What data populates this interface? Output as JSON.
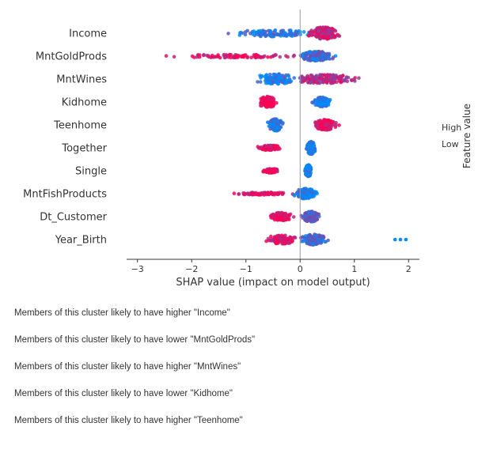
{
  "chart_data": {
    "type": "scatter",
    "subtype": "shap-beeswarm",
    "title": "",
    "xlabel": "SHAP value (impact on model output)",
    "ylabel": "",
    "xlim": [
      -3.2,
      2.2
    ],
    "xticks": [
      -3,
      -2,
      -1,
      0,
      1,
      2
    ],
    "xtick_labels": [
      "−3",
      "−2",
      "−1",
      "0",
      "1",
      "2"
    ],
    "zero_line": true,
    "colorbar": {
      "title": "Feature value",
      "high_label": "High",
      "low_label": "Low",
      "low_color": "#008bfb",
      "high_color": "#ff0052",
      "placement": "right"
    },
    "features": [
      {
        "name": "Income",
        "clusters": [
          {
            "min": -1.4,
            "max": 0.2,
            "center": -0.5,
            "width": 0.6,
            "weight": 0.45,
            "height": 0.4,
            "color": 0.15
          },
          {
            "min": 0.1,
            "max": 0.95,
            "center": 0.45,
            "width": 0.25,
            "weight": 0.55,
            "height": 0.7,
            "color": 0.8
          }
        ]
      },
      {
        "name": "MntGoldProds",
        "clusters": [
          {
            "min": -2.8,
            "max": -0.1,
            "center": -1.2,
            "width": 1.1,
            "weight": 0.35,
            "height": 0.2,
            "color": 0.9
          },
          {
            "min": -0.1,
            "max": 0.85,
            "center": 0.3,
            "width": 0.3,
            "weight": 0.65,
            "height": 0.55,
            "color": 0.25
          }
        ]
      },
      {
        "name": "MntWines",
        "clusters": [
          {
            "min": -1.0,
            "max": 0.0,
            "center": -0.45,
            "width": 0.35,
            "weight": 0.4,
            "height": 0.6,
            "color": 0.12
          },
          {
            "min": 0.0,
            "max": 1.75,
            "center": 0.45,
            "width": 0.55,
            "weight": 0.6,
            "height": 0.5,
            "color": 0.7
          }
        ]
      },
      {
        "name": "Kidhome",
        "clusters": [
          {
            "min": -0.85,
            "max": -0.25,
            "center": -0.6,
            "width": 0.15,
            "weight": 0.45,
            "height": 0.65,
            "color": 0.95
          },
          {
            "min": 0.1,
            "max": 0.7,
            "center": 0.4,
            "width": 0.15,
            "weight": 0.55,
            "height": 0.55,
            "color": 0.08
          }
        ]
      },
      {
        "name": "Teenhome",
        "clusters": [
          {
            "min": -0.65,
            "max": -0.2,
            "center": -0.45,
            "width": 0.12,
            "weight": 0.45,
            "height": 0.7,
            "color": 0.08
          },
          {
            "min": 0.05,
            "max": 1.1,
            "center": 0.45,
            "width": 0.2,
            "weight": 0.55,
            "height": 0.6,
            "color": 0.92
          }
        ]
      },
      {
        "name": "Together",
        "clusters": [
          {
            "min": -1.0,
            "max": -0.15,
            "center": -0.55,
            "width": 0.2,
            "weight": 0.35,
            "height": 0.3,
            "color": 0.95
          },
          {
            "min": 0.05,
            "max": 0.35,
            "center": 0.2,
            "width": 0.07,
            "weight": 0.65,
            "height": 0.75,
            "color": 0.05
          }
        ]
      },
      {
        "name": "Single",
        "clusters": [
          {
            "min": -0.9,
            "max": -0.25,
            "center": -0.55,
            "width": 0.15,
            "weight": 0.3,
            "height": 0.25,
            "color": 0.95
          },
          {
            "min": 0.05,
            "max": 0.3,
            "center": 0.15,
            "width": 0.05,
            "weight": 0.7,
            "height": 0.7,
            "color": 0.05
          }
        ]
      },
      {
        "name": "MntFishProducts",
        "clusters": [
          {
            "min": -1.4,
            "max": -0.1,
            "center": -0.6,
            "width": 0.5,
            "weight": 0.3,
            "height": 0.15,
            "color": 0.9
          },
          {
            "min": -0.3,
            "max": 0.55,
            "center": 0.1,
            "width": 0.18,
            "weight": 0.7,
            "height": 0.6,
            "color": 0.15
          }
        ]
      },
      {
        "name": "Dt_Customer",
        "clusters": [
          {
            "min": -0.75,
            "max": 0.05,
            "center": -0.35,
            "width": 0.22,
            "weight": 0.45,
            "height": 0.45,
            "color": 0.88
          },
          {
            "min": 0.0,
            "max": 0.7,
            "center": 0.2,
            "width": 0.15,
            "weight": 0.55,
            "height": 0.6,
            "color": 0.35
          }
        ]
      },
      {
        "name": "Year_Birth",
        "clusters": [
          {
            "min": -0.85,
            "max": 0.1,
            "center": -0.35,
            "width": 0.25,
            "weight": 0.4,
            "height": 0.5,
            "color": 0.85
          },
          {
            "min": -0.05,
            "max": 0.85,
            "center": 0.25,
            "width": 0.2,
            "weight": 0.6,
            "height": 0.6,
            "color": 0.25
          }
        ],
        "outliers": [
          {
            "x": 1.75,
            "color": 0.0
          },
          {
            "x": 1.85,
            "color": 0.0
          },
          {
            "x": 1.95,
            "color": 0.0
          }
        ]
      }
    ]
  },
  "notes": [
    "Members of this cluster likely to have higher \"Income\"",
    "Members of this cluster likely to have lower \"MntGoldProds\"",
    "Members of this cluster likely to have higher \"MntWines\"",
    "Members of this cluster likely to have lower \"Kidhome\"",
    "Members of this cluster likely to have higher \"Teenhome\""
  ]
}
